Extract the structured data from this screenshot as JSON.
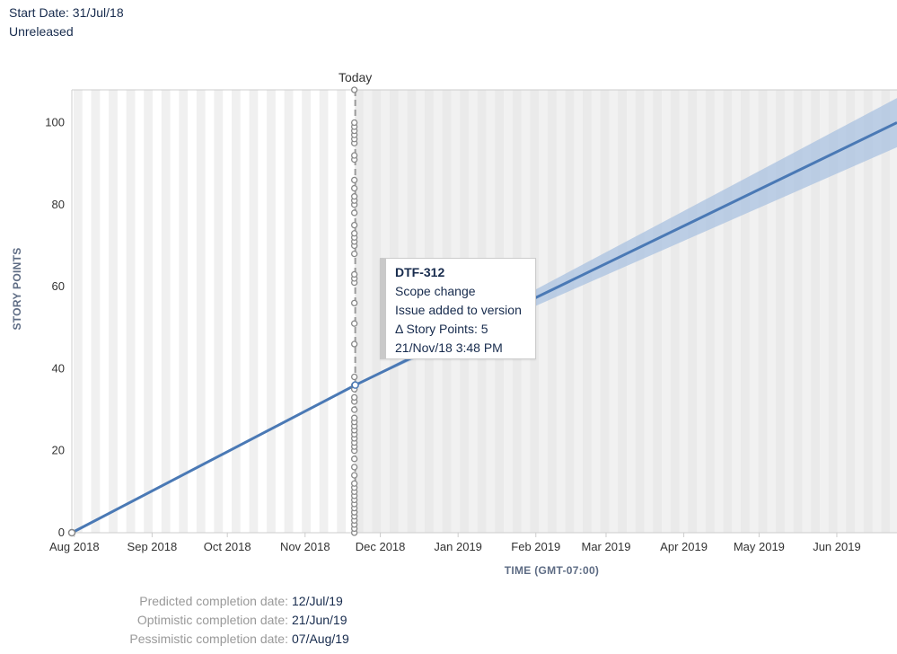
{
  "header": {
    "start_date": "Start Date: 31/Jul/18",
    "status": "Unreleased"
  },
  "chart_data": {
    "type": "line",
    "xlabel": "TIME (GMT-07:00)",
    "ylabel": "STORY POINTS",
    "ylim": [
      0,
      108
    ],
    "xlim": [
      "2018-07-31",
      "2019-06-25"
    ],
    "grid": "alternating vertical bands",
    "y_ticks": [
      0,
      20,
      40,
      60,
      80,
      100
    ],
    "x_ticks": [
      {
        "date": "2018-08-01",
        "label": "Aug 2018"
      },
      {
        "date": "2018-09-01",
        "label": "Sep 2018"
      },
      {
        "date": "2018-10-01",
        "label": "Oct 2018"
      },
      {
        "date": "2018-11-01",
        "label": "Nov 2018"
      },
      {
        "date": "2018-12-01",
        "label": "Dec 2018"
      },
      {
        "date": "2019-01-01",
        "label": "Jan 2019"
      },
      {
        "date": "2019-02-01",
        "label": "Feb 2019"
      },
      {
        "date": "2019-03-01",
        "label": "Mar 2019"
      },
      {
        "date": "2019-04-01",
        "label": "Apr 2019"
      },
      {
        "date": "2019-05-01",
        "label": "May 2019"
      },
      {
        "date": "2019-06-01",
        "label": "Jun 2019"
      }
    ],
    "today": {
      "label": "Today",
      "date": "2018-11-21"
    },
    "series": [
      {
        "values": [
          {
            "x": "2018-07-31",
            "y": 0
          },
          {
            "x": "2018-11-21",
            "y": 36
          }
        ]
      },
      {
        "values": [
          {
            "x": "2018-11-21",
            "y": 36
          },
          {
            "x": "2019-06-25",
            "y": 100
          }
        ]
      }
    ],
    "confidence_band": [
      {
        "x": "2018-11-21",
        "low": 36,
        "high": 36
      },
      {
        "x": "2019-06-25",
        "low": 94,
        "high": 106
      }
    ],
    "scope_points": [
      0,
      1,
      2,
      3,
      4,
      5,
      5,
      6,
      7,
      8,
      9,
      10,
      11,
      12,
      14,
      16,
      18,
      20,
      21,
      22,
      23,
      24,
      25,
      26,
      27,
      28,
      30,
      32,
      33,
      35,
      36,
      38,
      46,
      51,
      56,
      61,
      62,
      63,
      68,
      70,
      71,
      72,
      73,
      75,
      78,
      80,
      81,
      82,
      84,
      86,
      91,
      92,
      95,
      96,
      97,
      98,
      99,
      100,
      108
    ],
    "colors": {
      "line": "#4a79b5",
      "band": "#a9c2e0",
      "today_line": "#999999",
      "marker": "#888888"
    }
  },
  "tooltip": {
    "title": "DTF-312",
    "line1": "Scope change",
    "line2": "Issue added to version",
    "line3": "Δ Story Points: 5",
    "line4": "21/Nov/18 3:48 PM"
  },
  "completion": {
    "predicted_label": "Predicted completion date:",
    "predicted_value": "12/Jul/19",
    "optimistic_label": "Optimistic completion date:",
    "optimistic_value": "21/Jun/19",
    "pessimistic_label": "Pessimistic completion date:",
    "pessimistic_value": "07/Aug/19"
  }
}
